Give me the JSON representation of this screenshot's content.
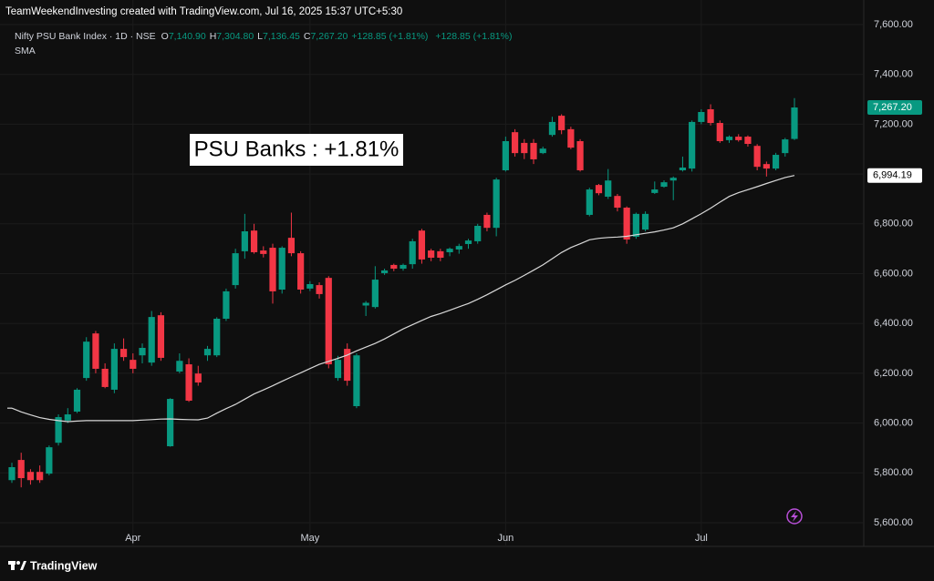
{
  "header": {
    "watermark": "TeamWeekendInvesting created with TradingView.com, Jul 16, 2025 15:37 UTC+5:30",
    "symbol": "Nifty PSU Bank Index · 1D · NSE",
    "ohlc": [
      {
        "key": "O",
        "value": "7,140.90"
      },
      {
        "key": "H",
        "value": "7,304.80"
      },
      {
        "key": "L",
        "value": "7,136.45"
      },
      {
        "key": "C",
        "value": "7,267.20"
      }
    ],
    "change": "+128.85 (+1.81%)",
    "change2": "+128.85 (+1.81%)",
    "indicator": "SMA"
  },
  "footer_brand": "TradingView",
  "chart_data": {
    "type": "candlestick",
    "annotation": "PSU Banks : +1.81%",
    "categories": [
      null,
      null,
      null,
      null,
      null,
      null,
      null,
      null,
      null,
      null,
      null,
      null,
      null,
      "Apr",
      null,
      null,
      null,
      null,
      null,
      null,
      null,
      null,
      null,
      null,
      null,
      null,
      null,
      null,
      null,
      null,
      null,
      null,
      "May",
      null,
      null,
      null,
      null,
      null,
      null,
      null,
      null,
      null,
      null,
      null,
      null,
      null,
      null,
      null,
      null,
      null,
      null,
      null,
      null,
      "Jun",
      null,
      null,
      null,
      null,
      null,
      null,
      null,
      null,
      null,
      null,
      null,
      null,
      null,
      null,
      null,
      null,
      null,
      null,
      null,
      null,
      "Jul",
      null,
      null,
      null,
      null,
      null,
      null,
      null,
      null,
      null,
      null
    ],
    "ohlc": {
      "open": [
        5771,
        5852,
        5804,
        5804,
        5797,
        5921,
        6010,
        6046,
        6181,
        6360,
        6218,
        6134,
        6298,
        6254,
        6272,
        6243,
        6433,
        5907,
        6207,
        6236,
        6199,
        6272,
        6272,
        6419,
        6554,
        6690,
        6773,
        6693,
        6704,
        6536,
        6744,
        6682,
        6540,
        6554,
        6583,
        6181,
        6298,
        6068,
        6472,
        6466,
        6602,
        6635,
        6620,
        6638,
        6773,
        6693,
        6690,
        6686,
        6697,
        6719,
        6730,
        6836,
        6784,
        7015,
        7168,
        7125,
        7125,
        7084,
        7157,
        7234,
        7180,
        7132,
        6836,
        6956,
        6909,
        6912,
        6865,
        6748,
        6777,
        6924,
        6949,
        6974,
        7015,
        7022,
        7209,
        7260,
        7205,
        7136,
        7150,
        7150,
        7113,
        7040,
        7022,
        7084,
        7140.9
      ],
      "high": [
        5841,
        5881,
        5815,
        5830,
        5910,
        6035,
        6060,
        6140,
        6345,
        6370,
        6240,
        6320,
        6340,
        6280,
        6320,
        6450,
        6445,
        6100,
        6280,
        6260,
        6230,
        6310,
        6425,
        6540,
        6700,
        6840,
        6800,
        6710,
        6720,
        6710,
        6845,
        6690,
        6570,
        6565,
        6590,
        6270,
        6320,
        6280,
        6490,
        6630,
        6620,
        6640,
        6640,
        6740,
        6780,
        6700,
        6700,
        6705,
        6720,
        6740,
        6800,
        6845,
        6985,
        7150,
        7180,
        7140,
        7140,
        7110,
        7230,
        7240,
        7190,
        7140,
        6945,
        6960,
        7020,
        6920,
        6870,
        6845,
        6850,
        6970,
        6975,
        6990,
        7070,
        7215,
        7260,
        7280,
        7215,
        7155,
        7160,
        7155,
        7120,
        7050,
        7085,
        7145,
        7304.8
      ],
      "low": [
        5760,
        5742,
        5753,
        5760,
        5790,
        5910,
        6000,
        6040,
        6170,
        6200,
        6140,
        6120,
        6250,
        6200,
        6240,
        6230,
        6250,
        5905,
        6200,
        6085,
        6150,
        6250,
        6265,
        6410,
        6540,
        6660,
        6680,
        6665,
        6480,
        6520,
        6670,
        6520,
        6530,
        6500,
        6220,
        6170,
        6150,
        6060,
        6430,
        6460,
        6595,
        6610,
        6612,
        6620,
        6640,
        6650,
        6650,
        6670,
        6680,
        6700,
        6720,
        6770,
        6750,
        7010,
        7070,
        7060,
        7040,
        7080,
        7150,
        7160,
        7100,
        7010,
        6830,
        6915,
        6900,
        6850,
        6720,
        6740,
        6770,
        6920,
        6945,
        6895,
        7010,
        7010,
        7200,
        7195,
        7125,
        7125,
        7130,
        7110,
        7015,
        6990,
        7015,
        7070,
        7136.45
      ],
      "close": [
        5823,
        5779,
        5771,
        5771,
        5903,
        6024,
        6035,
        6134,
        6327,
        6218,
        6145,
        6298,
        6265,
        6218,
        6302,
        6426,
        6262,
        6097,
        6250,
        6090,
        6163,
        6298,
        6419,
        6529,
        6682,
        6770,
        6686,
        6679,
        6529,
        6704,
        6682,
        6536,
        6558,
        6518,
        6236,
        6254,
        6170,
        6272,
        6483,
        6576,
        6613,
        6620,
        6635,
        6730,
        6657,
        6664,
        6664,
        6700,
        6711,
        6733,
        6792,
        6784,
        6978,
        7132,
        7084,
        7084,
        7059,
        7102,
        7209,
        7176,
        7106,
        7015,
        6938,
        6923,
        6974,
        6865,
        6737,
        6840,
        6840,
        6938,
        6967,
        6985,
        7026,
        7209,
        7249,
        7205,
        7132,
        7150,
        7136,
        7121,
        7029,
        7022,
        7077,
        7139,
        7267.2
      ]
    },
    "up_color": "#089981",
    "down_color": "#f23645",
    "sma": {
      "name": "SMA",
      "color": "#d9d9d9",
      "values": [
        6060,
        6045,
        6033,
        6022,
        6015,
        6010,
        6006,
        6008,
        6010,
        6010,
        6010,
        6010,
        6010,
        6010,
        6012,
        6014,
        6016,
        6017,
        6015,
        6014,
        6013,
        6020,
        6040,
        6058,
        6075,
        6096,
        6117,
        6133,
        6150,
        6168,
        6185,
        6202,
        6219,
        6236,
        6248,
        6260,
        6273,
        6290,
        6305,
        6320,
        6338,
        6358,
        6378,
        6395,
        6412,
        6428,
        6440,
        6453,
        6467,
        6480,
        6497,
        6515,
        6535,
        6555,
        6573,
        6593,
        6614,
        6635,
        6660,
        6685,
        6705,
        6720,
        6736,
        6742,
        6745,
        6747,
        6750,
        6756,
        6762,
        6768,
        6775,
        6784,
        6800,
        6820,
        6841,
        6863,
        6887,
        6910,
        6925,
        6937,
        6949,
        6962,
        6974,
        6986,
        6994.19
      ]
    },
    "ylim": [
      5600,
      7600
    ],
    "yticks": [
      {
        "value": 5600,
        "label": "5,600.00"
      },
      {
        "value": 5800,
        "label": "5,800.00"
      },
      {
        "value": 6000,
        "label": "6,000.00"
      },
      {
        "value": 6200,
        "label": "6,200.00"
      },
      {
        "value": 6400,
        "label": "6,400.00"
      },
      {
        "value": 6600,
        "label": "6,600.00"
      },
      {
        "value": 6800,
        "label": "6,800.00"
      },
      {
        "value": 7000,
        "label": "7,000.00"
      },
      {
        "value": 7200,
        "label": "7,200.00"
      },
      {
        "value": 7400,
        "label": "7,400.00"
      },
      {
        "value": 7600,
        "label": "7,600.00"
      }
    ],
    "price_tags": [
      {
        "value": 7267.2,
        "label": "7,267.20",
        "color": "#089981",
        "text_color": "#ffffff"
      },
      {
        "value": 6994.19,
        "label": "6,994.19",
        "color": "#ffffff",
        "text_color": "#000000"
      }
    ],
    "grid": true
  }
}
